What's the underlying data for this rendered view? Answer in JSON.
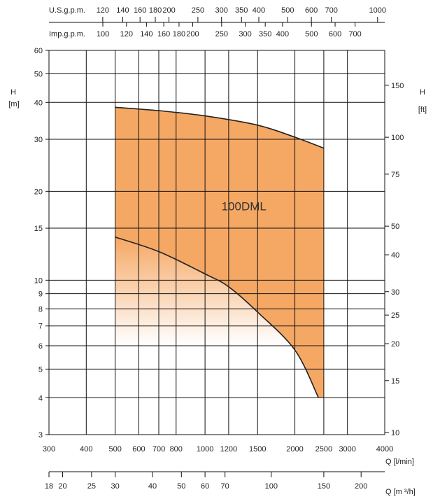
{
  "chart_data": {
    "type": "area",
    "model": "100DML",
    "x_scale": "log",
    "y_scale": "log",
    "xlim": [
      300,
      4000
    ],
    "ylim": [
      3,
      60
    ],
    "x_unit_label": "Q [l/min]",
    "y_unit_label": "H [m]",
    "y2_unit_label": "H [ft]",
    "x_m3h_label": "Q [m ³/h]",
    "usgpm_label": "U.S.g.p.m.",
    "impgpm_label": "Imp.g.p.m.",
    "x_ticks": [
      300,
      400,
      500,
      600,
      700,
      800,
      1000,
      1200,
      1500,
      2000,
      2500,
      3000,
      4000
    ],
    "y_ticks": [
      3,
      4,
      5,
      6,
      7,
      8,
      9,
      10,
      15,
      20,
      30,
      40,
      50,
      60
    ],
    "ft_ticks": [
      10,
      15,
      20,
      25,
      30,
      40,
      50,
      75,
      100,
      150
    ],
    "m3h_ticks": [
      18,
      20,
      25,
      30,
      40,
      50,
      60,
      70,
      100,
      150,
      200
    ],
    "usgpm_ticks": [
      120,
      140,
      160,
      180,
      200,
      250,
      300,
      350,
      400,
      500,
      600,
      700,
      1000
    ],
    "impgpm_ticks": [
      100,
      120,
      140,
      160,
      180,
      200,
      250,
      300,
      350,
      400,
      500,
      600,
      700
    ],
    "upper_curve": {
      "x": [
        500,
        700,
        1000,
        1500,
        2000,
        2500
      ],
      "y": [
        38.5,
        37.5,
        36,
        33.5,
        30.5,
        28
      ]
    },
    "lower_curve": {
      "x": [
        500,
        700,
        1000,
        1200,
        1500,
        2000,
        2400
      ],
      "y": [
        14,
        12.5,
        10.5,
        9.5,
        7.8,
        5.8,
        4
      ]
    },
    "colors": {
      "fill": "#F5A864",
      "curve": "#222222",
      "grid": "#111111"
    }
  }
}
